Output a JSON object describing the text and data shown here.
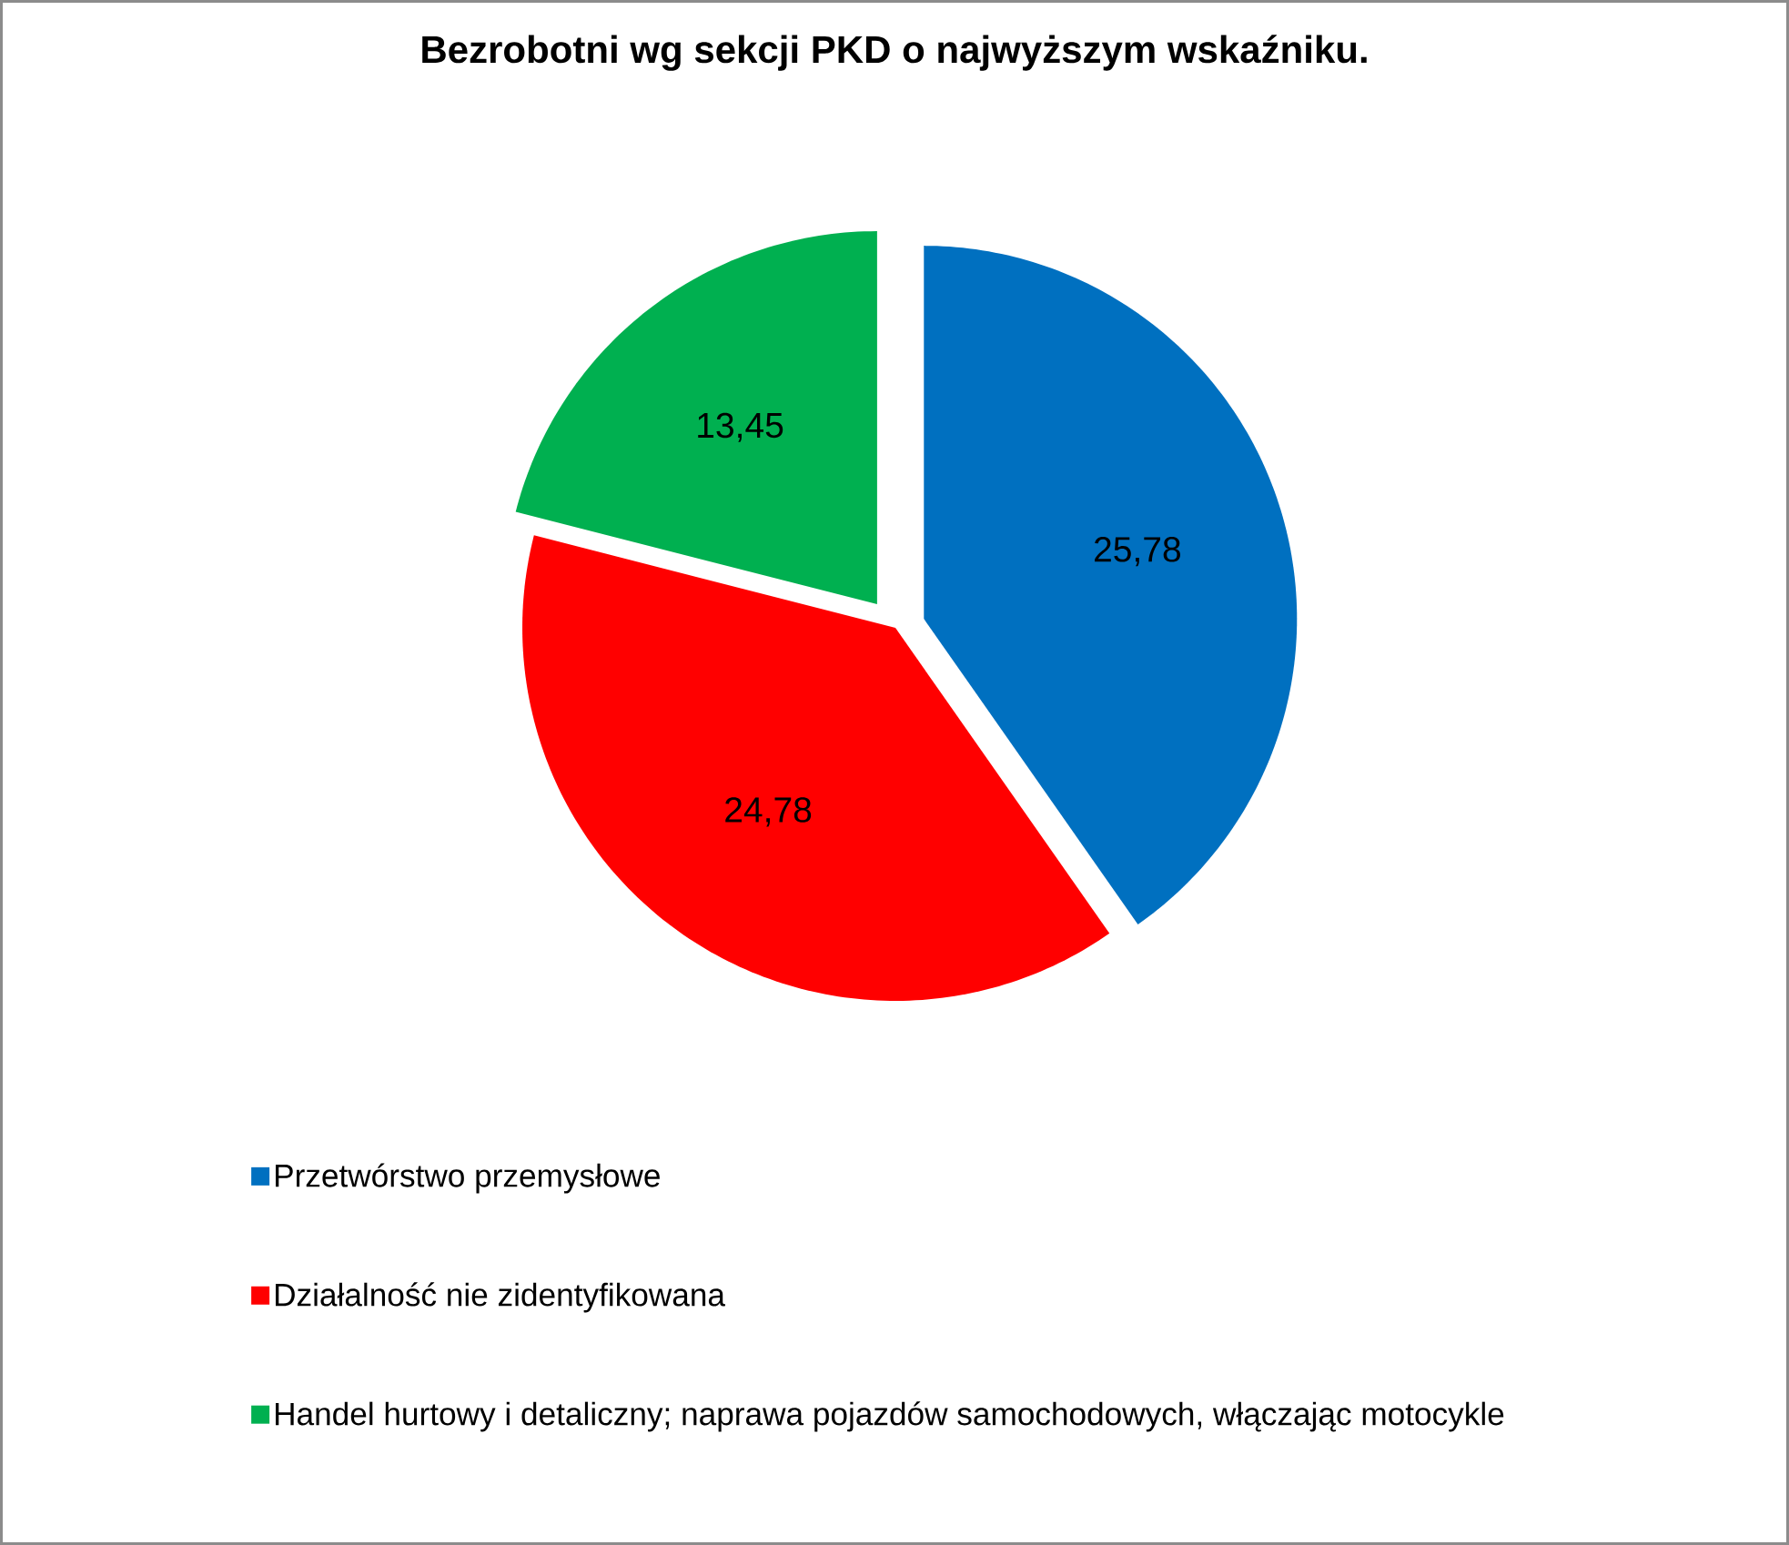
{
  "chart_data": {
    "type": "pie",
    "title": "Bezrobotni wg sekcji PKD o najwyższym wskaźniku.",
    "categories": [
      "Przetwórstwo przemysłowe",
      "Działalność nie zidentyfikowana",
      "Handel hurtowy i detaliczny; naprawa pojazdów samochodowych, włączając motocykle"
    ],
    "values": [
      25.78,
      24.78,
      13.45
    ],
    "value_labels": [
      "25,78",
      "24,78",
      "13,45"
    ],
    "colors": [
      "#0070c0",
      "#ff0000",
      "#00b050"
    ],
    "legend": "bottom"
  }
}
